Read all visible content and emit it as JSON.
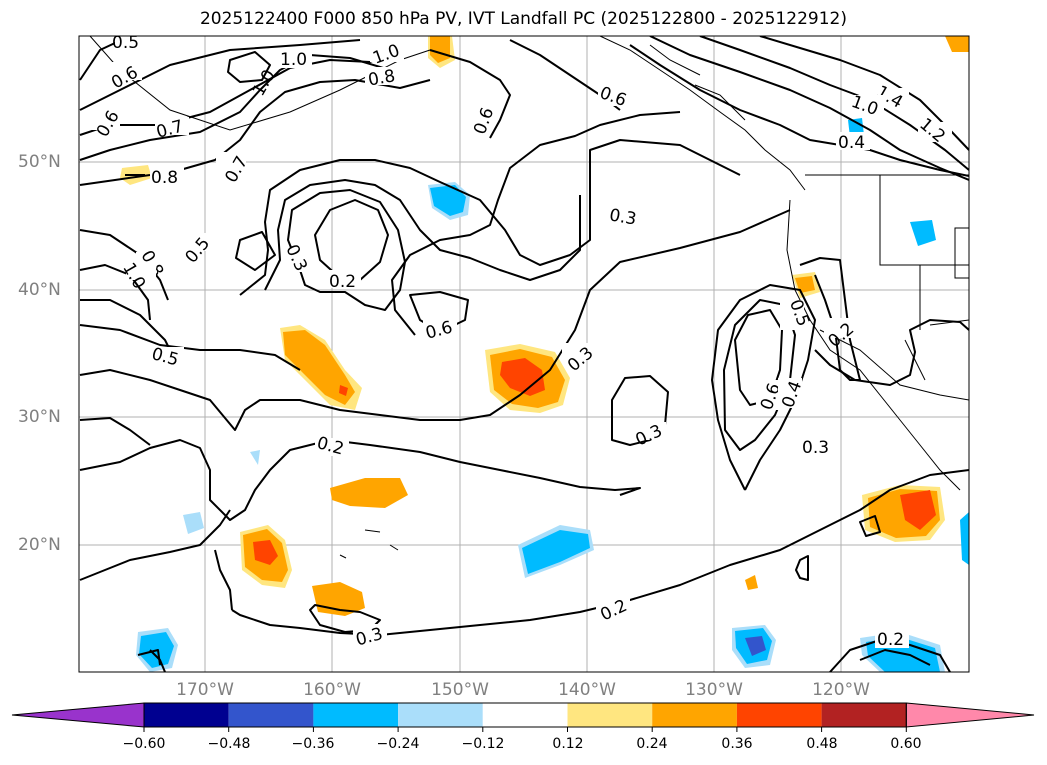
{
  "title": "2025122400 F000 850 hPa PV, IVT Landfall PC (2025122800 - 2025122912)",
  "map": {
    "lat_labels": [
      "50°N",
      "40°N",
      "30°N",
      "20°N"
    ],
    "lon_labels": [
      "170°W",
      "160°W",
      "150°W",
      "140°W",
      "130°W",
      "120°W"
    ],
    "contour_labels": [
      "0.5",
      "1.0",
      "1.0",
      "0.6",
      "0.8",
      "1.0",
      "0.6",
      "0.6",
      "0.6",
      "0.7",
      "0.7",
      "0.8",
      "0.5",
      "0.8",
      "1.0",
      "0.3",
      "0.2",
      "0.6",
      "0.5",
      "0.3",
      "0.3",
      "0.5",
      "0.6",
      "0.4",
      "0.2",
      "0.3",
      "0.2",
      "0.2",
      "0.3",
      "0.2",
      "1.4",
      "1.0",
      "1.2",
      "0.4"
    ]
  },
  "colorbar": {
    "ticks": [
      "−0.60",
      "−0.48",
      "−0.36",
      "−0.24",
      "−0.12",
      "0.12",
      "0.24",
      "0.36",
      "0.48",
      "0.60"
    ],
    "colors": [
      "#9933cc",
      "#000090",
      "#3355cc",
      "#00bbff",
      "#aadefa",
      "#ffffff",
      "#ffe680",
      "#ffa500",
      "#ff4400",
      "#b22222",
      "#ff88aa"
    ]
  }
}
